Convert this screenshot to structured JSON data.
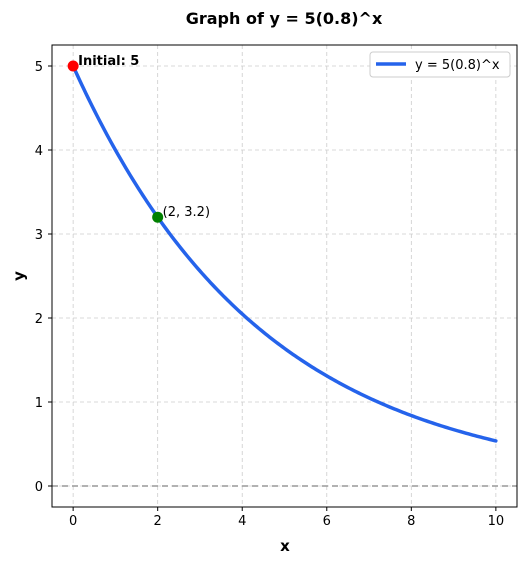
{
  "chart_data": {
    "type": "line",
    "title": "Graph of y = 5(0.8)^x",
    "xlabel": "x",
    "ylabel": "y",
    "xlim": [
      -0.5,
      10.5
    ],
    "ylim": [
      -0.25,
      5.25
    ],
    "xticks": [
      0,
      2,
      4,
      6,
      8,
      10
    ],
    "yticks": [
      0,
      1,
      2,
      3,
      4,
      5
    ],
    "grid": true,
    "legend_position": "top-right",
    "series": [
      {
        "name": "y = 5(0.8)^x",
        "color": "#2563eb",
        "function": "5*0.8^x",
        "x_range": [
          0,
          10
        ]
      }
    ],
    "hline": {
      "y": 0,
      "color": "#999999",
      "style": "dashed"
    },
    "points": [
      {
        "x": 0,
        "y": 5,
        "color": "#ff0000",
        "label": "Initial: 5",
        "bold": true
      },
      {
        "x": 2,
        "y": 3.2,
        "color": "#008000",
        "label": "(2, 3.2)",
        "bold": false
      }
    ]
  }
}
